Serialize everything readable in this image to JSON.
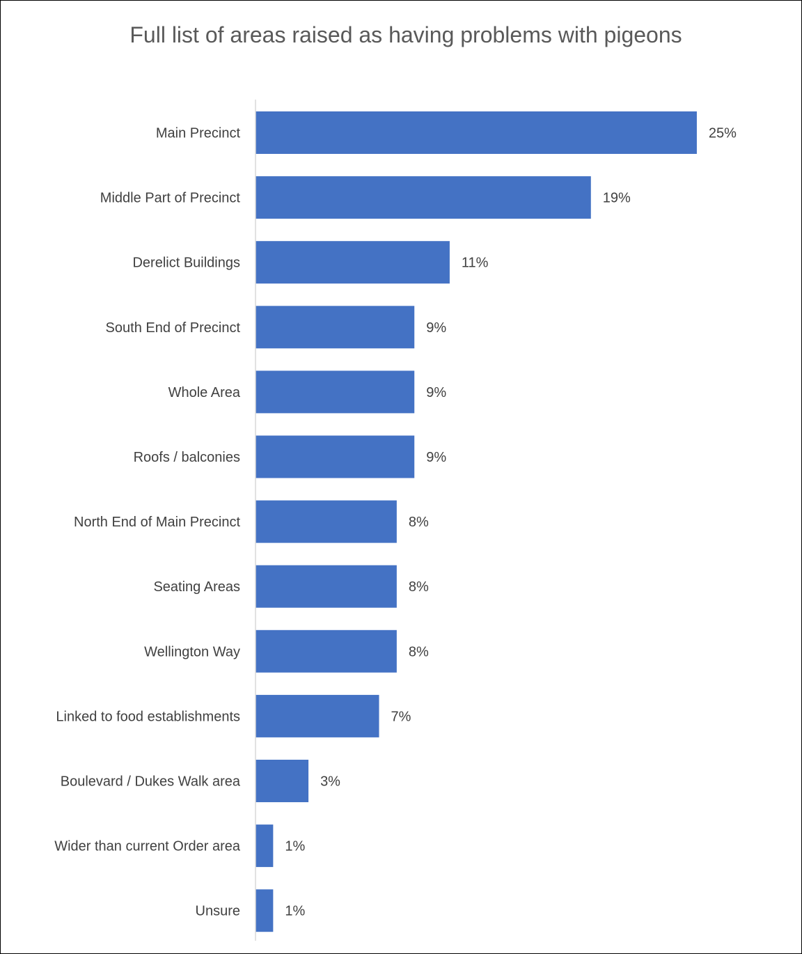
{
  "chart_data": {
    "type": "bar",
    "orientation": "horizontal",
    "title": "Full list of areas raised as having problems with pigeons",
    "categories": [
      "Main Precinct",
      "Middle Part of Precinct",
      "Derelict Buildings",
      "South End of Precinct",
      "Whole Area",
      "Roofs / balconies",
      "North End of Main Precinct",
      "Seating Areas",
      "Wellington Way",
      "Linked to food establishments",
      "Boulevard / Dukes Walk area",
      "Wider than current Order area",
      "Unsure"
    ],
    "values": [
      25,
      19,
      11,
      9,
      9,
      9,
      8,
      8,
      8,
      7,
      3,
      1,
      1
    ],
    "value_labels": [
      "25%",
      "19%",
      "11%",
      "9%",
      "9%",
      "9%",
      "8%",
      "8%",
      "8%",
      "7%",
      "3%",
      "1%",
      "1%"
    ],
    "unit": "%",
    "xlim": [
      0,
      28
    ],
    "grid": false,
    "legend": "none",
    "colors": {
      "bar": "#4472C4",
      "axis": "#D9D9D9",
      "text": "#404040",
      "title": "#595959"
    }
  }
}
